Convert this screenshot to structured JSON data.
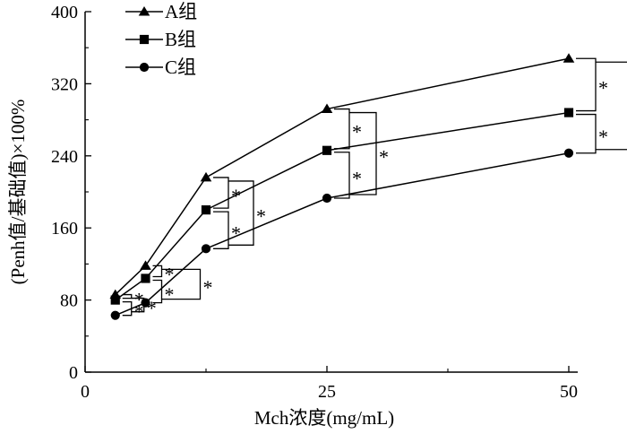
{
  "chart_data": {
    "type": "line",
    "title": "",
    "xlabel": "Mch浓度(mg/mL)",
    "ylabel": "(Penh值/基础值)×100%",
    "x": [
      3.125,
      6.25,
      12.5,
      25,
      50
    ],
    "xlim": [
      0,
      50
    ],
    "ylim": [
      0,
      400
    ],
    "x_ticks": [
      "0",
      "25",
      "50"
    ],
    "y_ticks": [
      "0",
      "80",
      "160",
      "240",
      "320",
      "400"
    ],
    "grid": false,
    "legend_position": "top-left",
    "series": [
      {
        "name": "A组",
        "marker": "triangle",
        "values": [
          86,
          118,
          216,
          292,
          348
        ]
      },
      {
        "name": "B组",
        "marker": "square",
        "values": [
          80,
          104,
          180,
          246,
          288
        ]
      },
      {
        "name": "C组",
        "marker": "circle",
        "values": [
          63,
          77,
          137,
          193,
          243
        ]
      }
    ],
    "significance_marker": "*",
    "significance": [
      {
        "x_index": 0,
        "pairs": [
          [
            0,
            1
          ],
          [
            1,
            2
          ],
          [
            0,
            2
          ]
        ]
      },
      {
        "x_index": 1,
        "pairs": [
          [
            0,
            1
          ],
          [
            1,
            2
          ],
          [
            0,
            2
          ]
        ]
      },
      {
        "x_index": 2,
        "pairs": [
          [
            0,
            1
          ],
          [
            1,
            2
          ],
          [
            0,
            2
          ]
        ]
      },
      {
        "x_index": 3,
        "pairs": [
          [
            0,
            1
          ],
          [
            1,
            2
          ],
          [
            0,
            2
          ]
        ]
      },
      {
        "x_index": 4,
        "pairs": [
          [
            0,
            1
          ],
          [
            1,
            2
          ],
          [
            0,
            2
          ]
        ]
      }
    ]
  }
}
